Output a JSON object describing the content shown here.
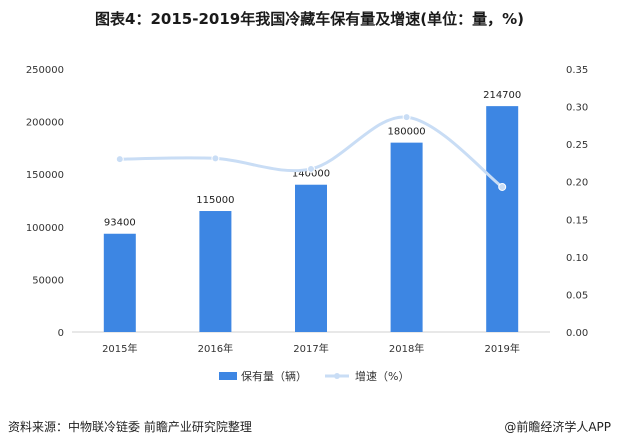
{
  "title": "图表4：2015-2019年我国冷藏车保有量及增速(单位：量，%)",
  "source": "资料来源：中物联冷链委 前瞻产业研究院整理",
  "brand": "@前瞻经济学人APP",
  "colors": {
    "bar": "#3d86e3",
    "line": "#c9ddf5"
  },
  "chart_data": {
    "type": "bar",
    "categories": [
      "2015年",
      "2016年",
      "2017年",
      "2018年",
      "2019年"
    ],
    "series": [
      {
        "name": "保有量（辆）",
        "type": "bar",
        "axis": "left",
        "values": [
          93400,
          115000,
          140000,
          180000,
          214700
        ],
        "labels": [
          "93400",
          "115000",
          "140000",
          "180000",
          "214700"
        ]
      },
      {
        "name": "增速（%）",
        "type": "line",
        "axis": "right",
        "values": [
          0.23,
          0.231,
          0.217,
          0.286,
          0.193
        ]
      }
    ],
    "ylim_left": [
      0,
      250000
    ],
    "yticks_left": [
      "0",
      "50000",
      "100000",
      "150000",
      "200000",
      "250000"
    ],
    "ylim_right": [
      0,
      0.35
    ],
    "yticks_right": [
      "0.00",
      "0.05",
      "0.10",
      "0.15",
      "0.20",
      "0.25",
      "0.30",
      "0.35"
    ],
    "legend_position": "bottom",
    "grid": false
  }
}
